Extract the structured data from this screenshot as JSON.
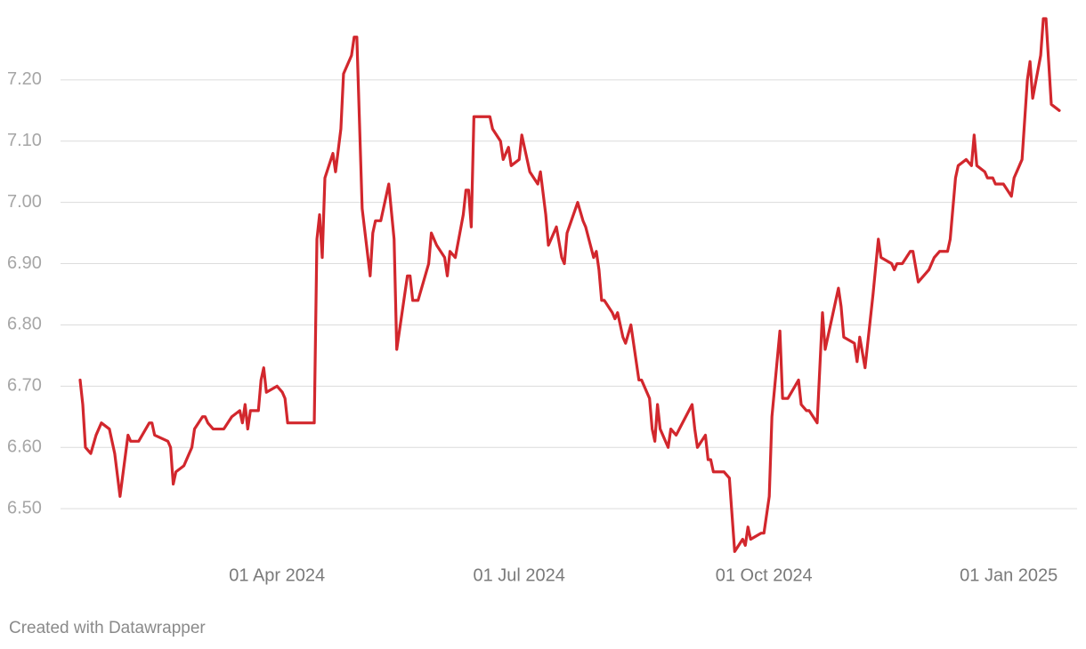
{
  "chart_data": {
    "type": "line",
    "x": [
      "2024-01-18",
      "2024-01-19",
      "2024-01-20",
      "2024-01-22",
      "2024-01-24",
      "2024-01-26",
      "2024-01-29",
      "2024-01-31",
      "2024-02-02",
      "2024-02-05",
      "2024-02-06",
      "2024-02-09",
      "2024-02-13",
      "2024-02-14",
      "2024-02-15",
      "2024-02-20",
      "2024-02-21",
      "2024-02-22",
      "2024-02-23",
      "2024-02-26",
      "2024-02-29",
      "2024-03-01",
      "2024-03-04",
      "2024-03-05",
      "2024-03-06",
      "2024-03-08",
      "2024-03-12",
      "2024-03-15",
      "2024-03-18",
      "2024-03-19",
      "2024-03-20",
      "2024-03-21",
      "2024-03-22",
      "2024-03-25",
      "2024-03-26",
      "2024-03-27",
      "2024-03-28",
      "2024-04-01",
      "2024-04-03",
      "2024-04-04",
      "2024-04-05",
      "2024-04-15",
      "2024-04-16",
      "2024-04-17",
      "2024-04-18",
      "2024-04-19",
      "2024-04-22",
      "2024-04-23",
      "2024-04-25",
      "2024-04-26",
      "2024-04-29",
      "2024-04-30",
      "2024-05-01",
      "2024-05-03",
      "2024-05-06",
      "2024-05-07",
      "2024-05-08",
      "2024-05-10",
      "2024-05-13",
      "2024-05-15",
      "2024-05-16",
      "2024-05-20",
      "2024-05-21",
      "2024-05-22",
      "2024-05-24",
      "2024-05-28",
      "2024-05-29",
      "2024-05-31",
      "2024-06-03",
      "2024-06-04",
      "2024-06-05",
      "2024-06-07",
      "2024-06-10",
      "2024-06-11",
      "2024-06-12",
      "2024-06-13",
      "2024-06-14",
      "2024-06-18",
      "2024-06-20",
      "2024-06-21",
      "2024-06-24",
      "2024-06-25",
      "2024-06-27",
      "2024-06-28",
      "2024-07-01",
      "2024-07-02",
      "2024-07-03",
      "2024-07-05",
      "2024-07-08",
      "2024-07-09",
      "2024-07-11",
      "2024-07-12",
      "2024-07-15",
      "2024-07-17",
      "2024-07-18",
      "2024-07-19",
      "2024-07-23",
      "2024-07-25",
      "2024-07-26",
      "2024-07-29",
      "2024-07-30",
      "2024-07-31",
      "2024-08-01",
      "2024-08-02",
      "2024-08-05",
      "2024-08-06",
      "2024-08-07",
      "2024-08-09",
      "2024-08-10",
      "2024-08-12",
      "2024-08-15",
      "2024-08-16",
      "2024-08-19",
      "2024-08-20",
      "2024-08-21",
      "2024-08-22",
      "2024-08-23",
      "2024-08-26",
      "2024-08-27",
      "2024-08-29",
      "2024-09-04",
      "2024-09-05",
      "2024-09-06",
      "2024-09-09",
      "2024-09-10",
      "2024-09-11",
      "2024-09-12",
      "2024-09-16",
      "2024-09-18",
      "2024-09-20",
      "2024-09-23",
      "2024-09-24",
      "2024-09-25",
      "2024-09-26",
      "2024-09-30",
      "2024-10-01",
      "2024-10-03",
      "2024-10-04",
      "2024-10-07",
      "2024-10-08",
      "2024-10-10",
      "2024-10-14",
      "2024-10-15",
      "2024-10-17",
      "2024-10-18",
      "2024-10-21",
      "2024-10-23",
      "2024-10-24",
      "2024-10-28",
      "2024-10-29",
      "2024-10-30",
      "2024-10-31",
      "2024-11-04",
      "2024-11-05",
      "2024-11-06",
      "2024-11-08",
      "2024-11-11",
      "2024-11-13",
      "2024-11-14",
      "2024-11-18",
      "2024-11-19",
      "2024-11-20",
      "2024-11-22",
      "2024-11-25",
      "2024-11-26",
      "2024-11-28",
      "2024-12-02",
      "2024-12-04",
      "2024-12-06",
      "2024-12-09",
      "2024-12-10",
      "2024-12-12",
      "2024-12-13",
      "2024-12-16",
      "2024-12-18",
      "2024-12-19",
      "2024-12-20",
      "2024-12-23",
      "2024-12-24",
      "2024-12-26",
      "2024-12-27",
      "2024-12-30",
      "2025-01-02",
      "2025-01-03",
      "2025-01-06",
      "2025-01-08",
      "2025-01-09",
      "2025-01-10",
      "2025-01-13",
      "2025-01-14",
      "2025-01-15",
      "2025-01-16",
      "2025-01-17",
      "2025-01-20"
    ],
    "values": [
      6.71,
      6.67,
      6.6,
      6.59,
      6.62,
      6.64,
      6.63,
      6.59,
      6.52,
      6.62,
      6.61,
      6.61,
      6.64,
      6.64,
      6.62,
      6.61,
      6.6,
      6.54,
      6.56,
      6.57,
      6.6,
      6.63,
      6.65,
      6.65,
      6.64,
      6.63,
      6.63,
      6.65,
      6.66,
      6.64,
      6.67,
      6.63,
      6.66,
      6.66,
      6.71,
      6.73,
      6.69,
      6.7,
      6.69,
      6.68,
      6.64,
      6.64,
      6.94,
      6.98,
      6.91,
      7.04,
      7.08,
      7.05,
      7.12,
      7.21,
      7.24,
      7.27,
      7.27,
      6.99,
      6.88,
      6.95,
      6.97,
      6.97,
      7.03,
      6.94,
      6.76,
      6.88,
      6.88,
      6.84,
      6.84,
      6.9,
      6.95,
      6.93,
      6.91,
      6.88,
      6.92,
      6.91,
      6.98,
      7.02,
      7.02,
      6.96,
      7.14,
      7.14,
      7.14,
      7.12,
      7.1,
      7.07,
      7.09,
      7.06,
      7.07,
      7.11,
      7.09,
      7.05,
      7.03,
      7.05,
      6.98,
      6.93,
      6.96,
      6.91,
      6.9,
      6.95,
      7.0,
      6.97,
      6.96,
      6.91,
      6.92,
      6.89,
      6.84,
      6.84,
      6.82,
      6.81,
      6.82,
      6.78,
      6.77,
      6.8,
      6.71,
      6.71,
      6.68,
      6.63,
      6.61,
      6.67,
      6.63,
      6.6,
      6.63,
      6.62,
      6.67,
      6.63,
      6.6,
      6.62,
      6.58,
      6.58,
      6.56,
      6.56,
      6.55,
      6.43,
      6.45,
      6.44,
      6.47,
      6.45,
      6.46,
      6.46,
      6.52,
      6.65,
      6.79,
      6.68,
      6.68,
      6.71,
      6.67,
      6.66,
      6.66,
      6.64,
      6.82,
      6.76,
      6.84,
      6.86,
      6.83,
      6.78,
      6.77,
      6.74,
      6.78,
      6.73,
      6.85,
      6.94,
      6.91,
      6.9,
      6.89,
      6.9,
      6.9,
      6.92,
      6.92,
      6.87,
      6.89,
      6.91,
      6.92,
      6.92,
      6.94,
      7.04,
      7.06,
      7.07,
      7.06,
      7.11,
      7.06,
      7.05,
      7.04,
      7.04,
      7.03,
      7.03,
      7.01,
      7.04,
      7.07,
      7.2,
      7.23,
      7.17,
      7.24,
      7.3,
      7.3,
      7.23,
      7.16,
      7.15
    ],
    "color": "#d2272d",
    "xlim": [
      "2024-01-18",
      "2025-01-20"
    ],
    "xticks": [
      {
        "value": "2024-04-01",
        "label": "01 Apr 2024"
      },
      {
        "value": "2024-07-01",
        "label": "01 Jul 2024"
      },
      {
        "value": "2024-10-01",
        "label": "01 Oct 2024"
      },
      {
        "value": "2025-01-01",
        "label": "01 Jan 2025"
      }
    ],
    "ylim": [
      6.4,
      7.3
    ],
    "yticks": [
      {
        "value": 6.5,
        "label": "6.50"
      },
      {
        "value": 6.6,
        "label": "6.60"
      },
      {
        "value": 6.7,
        "label": "6.70"
      },
      {
        "value": 6.8,
        "label": "6.80"
      },
      {
        "value": 6.9,
        "label": "6.90"
      },
      {
        "value": 7.0,
        "label": "7.00"
      },
      {
        "value": 7.1,
        "label": "7.10"
      },
      {
        "value": 7.2,
        "label": "7.20"
      }
    ],
    "grid": true,
    "credit": "Created with Datawrapper"
  }
}
